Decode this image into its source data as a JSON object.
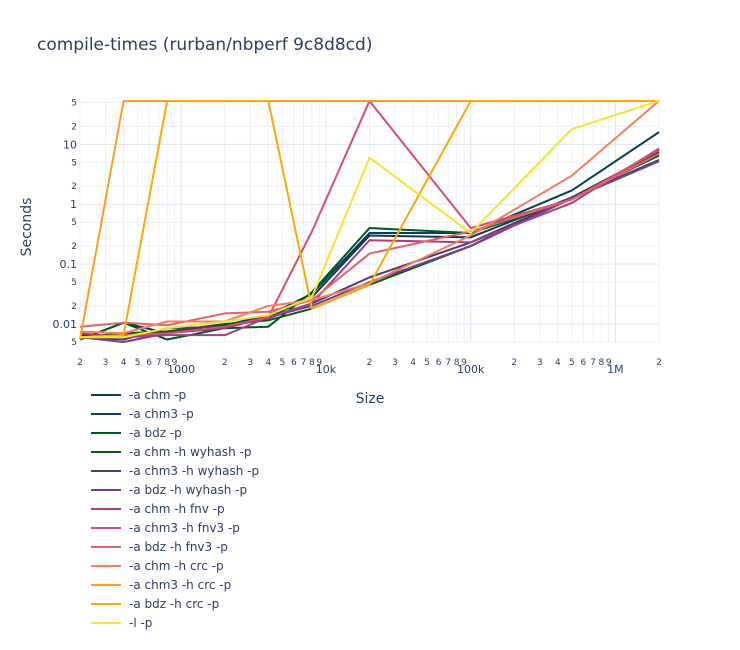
{
  "chart_data": {
    "type": "line",
    "title": "compile-times (rurban/nbperf 9c8d8cd)",
    "xlabel": "Size",
    "ylabel": "Seconds",
    "x_scale": "log",
    "y_scale": "log",
    "xlim": [
      200,
      2000000
    ],
    "ylim": [
      0.005,
      55
    ],
    "grid": true,
    "legend_position": "bottom-left",
    "x_major_ticks": [
      {
        "value": 1000,
        "label": "1000"
      },
      {
        "value": 10000,
        "label": "10k"
      },
      {
        "value": 100000,
        "label": "100k"
      },
      {
        "value": 1000000,
        "label": "1M"
      }
    ],
    "x_minor_ticks": [
      {
        "value": 200,
        "label": "2"
      },
      {
        "value": 300,
        "label": "3"
      },
      {
        "value": 400,
        "label": "4"
      },
      {
        "value": 500,
        "label": "5"
      },
      {
        "value": 600,
        "label": "6"
      },
      {
        "value": 700,
        "label": "7"
      },
      {
        "value": 800,
        "label": "8"
      },
      {
        "value": 900,
        "label": "9"
      },
      {
        "value": 2000,
        "label": "2"
      },
      {
        "value": 3000,
        "label": "3"
      },
      {
        "value": 4000,
        "label": "4"
      },
      {
        "value": 5000,
        "label": "5"
      },
      {
        "value": 6000,
        "label": "6"
      },
      {
        "value": 7000,
        "label": "7"
      },
      {
        "value": 8000,
        "label": "8"
      },
      {
        "value": 9000,
        "label": "9"
      },
      {
        "value": 20000,
        "label": "2"
      },
      {
        "value": 30000,
        "label": "3"
      },
      {
        "value": 40000,
        "label": "4"
      },
      {
        "value": 50000,
        "label": "5"
      },
      {
        "value": 60000,
        "label": "6"
      },
      {
        "value": 70000,
        "label": "7"
      },
      {
        "value": 80000,
        "label": "8"
      },
      {
        "value": 90000,
        "label": "9"
      },
      {
        "value": 200000,
        "label": "2"
      },
      {
        "value": 300000,
        "label": "3"
      },
      {
        "value": 400000,
        "label": "4"
      },
      {
        "value": 500000,
        "label": "5"
      },
      {
        "value": 600000,
        "label": "6"
      },
      {
        "value": 700000,
        "label": "7"
      },
      {
        "value": 800000,
        "label": "8"
      },
      {
        "value": 900000,
        "label": "9"
      },
      {
        "value": 2000000,
        "label": "2"
      }
    ],
    "y_major_ticks": [
      {
        "value": 0.01,
        "label": "0.01"
      },
      {
        "value": 0.1,
        "label": "0.1"
      },
      {
        "value": 1,
        "label": "1"
      },
      {
        "value": 10,
        "label": "10"
      }
    ],
    "y_minor_ticks": [
      {
        "value": 0.005,
        "label": "5"
      },
      {
        "value": 0.02,
        "label": "2"
      },
      {
        "value": 0.05,
        "label": "5"
      },
      {
        "value": 0.2,
        "label": "2"
      },
      {
        "value": 0.5,
        "label": "5"
      },
      {
        "value": 2,
        "label": "2"
      },
      {
        "value": 5,
        "label": "5"
      },
      {
        "value": 20,
        "label": "2"
      },
      {
        "value": 50,
        "label": "5"
      }
    ],
    "x": [
      200,
      400,
      800,
      2000,
      4000,
      8000,
      20000,
      100000,
      500000,
      2000000
    ],
    "series": [
      {
        "name": "-a chm -p",
        "color": "#0d3b4f",
        "values": [
          0.0055,
          0.0105,
          0.007,
          0.009,
          0.013,
          0.028,
          0.3,
          0.28,
          1.3,
          7.5
        ]
      },
      {
        "name": "-a chm3 -p",
        "color": "#083d5c",
        "values": [
          0.0065,
          0.006,
          0.0075,
          0.0095,
          0.014,
          0.032,
          0.33,
          0.33,
          1.7,
          16
        ]
      },
      {
        "name": "-a bdz -p",
        "color": "#005a1f",
        "values": [
          0.0055,
          0.0105,
          0.0055,
          0.0085,
          0.009,
          0.034,
          0.4,
          0.33,
          1.2,
          8
        ]
      },
      {
        "name": "-a chm -h wyhash -p",
        "color": "#0f5a14",
        "values": [
          0.006,
          0.007,
          0.0075,
          0.01,
          0.0115,
          0.018,
          0.045,
          0.2,
          1.3,
          6.5
        ]
      },
      {
        "name": "-a chm3 -h wyhash -p",
        "color": "#4e3a6e",
        "values": [
          0.006,
          0.0055,
          0.0085,
          0.009,
          0.0125,
          0.022,
          0.06,
          0.23,
          1.3,
          5.5
        ]
      },
      {
        "name": "-a bdz -h wyhash -p",
        "color": "#7a3f88",
        "values": [
          0.006,
          0.005,
          0.007,
          0.0085,
          0.013,
          0.02,
          0.05,
          0.2,
          1.25,
          5.2
        ]
      },
      {
        "name": "-a chm -h fnv -p",
        "color": "#a0417d",
        "values": [
          0.007,
          0.006,
          0.0065,
          0.0065,
          0.013,
          0.022,
          0.25,
          0.23,
          1.05,
          8.5
        ]
      },
      {
        "name": "-a chm3 -h fnv3 -p",
        "color": "#d44e6e",
        "values": [
          0.006,
          0.0065,
          0.007,
          0.009,
          0.013,
          0.35,
          53,
          0.4,
          1.2,
          8
        ]
      },
      {
        "name": "-a bdz -h fnv3 -p",
        "color": "#e26466",
        "values": [
          0.009,
          0.0105,
          0.0095,
          0.015,
          0.016,
          0.025,
          0.15,
          0.35,
          1.2,
          7
        ]
      },
      {
        "name": "-a chm -h crc -p",
        "color": "#f07f5e",
        "values": [
          0.0075,
          0.007,
          0.011,
          0.011,
          0.02,
          0.025,
          0.048,
          0.3,
          3,
          53
        ]
      },
      {
        "name": "-a chm3 -h crc -p",
        "color": "#f99e2a",
        "values": [
          0.0055,
          53,
          53,
          53,
          53,
          53,
          53,
          53,
          53,
          53
        ]
      },
      {
        "name": "-a bdz -h crc -p",
        "color": "#fba80b",
        "values": [
          0.006,
          0.0065,
          53,
          53,
          53,
          0.018,
          0.045,
          53,
          53,
          53
        ]
      },
      {
        "name": "-l -p",
        "color": "#f8e231",
        "values": [
          0.006,
          0.006,
          0.0085,
          0.011,
          0.014,
          0.028,
          6,
          0.33,
          18,
          53
        ]
      }
    ]
  }
}
